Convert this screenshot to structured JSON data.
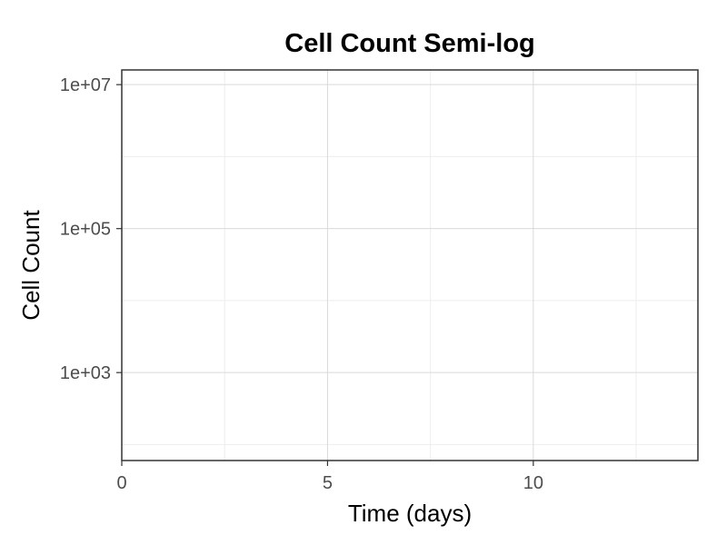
{
  "chart_data": {
    "type": "scatter",
    "title": "Cell Count Semi-log",
    "xlabel": "Time (days)",
    "ylabel": "Cell Count",
    "xlim": [
      0,
      14
    ],
    "ylim": [
      60,
      16000000
    ],
    "y_scale": "log10",
    "x_ticks": [
      0,
      5,
      10
    ],
    "x_tick_labels": [
      "0",
      "5",
      "10"
    ],
    "x_minor_ticks": [
      2.5,
      7.5,
      12.5
    ],
    "y_ticks": [
      1000,
      100000,
      10000000
    ],
    "y_tick_labels": [
      "1e+03",
      "1e+05",
      "1e+07"
    ],
    "y_minor_ticks": [
      100,
      10000,
      1000000
    ],
    "series": [],
    "grid": true,
    "legend": "none",
    "colors": {
      "panel_border": "#333333",
      "grid_major": "#d9d9d9",
      "grid_minor": "#ededed",
      "tick_text": "#4d4d4d",
      "background": "#ffffff"
    }
  }
}
